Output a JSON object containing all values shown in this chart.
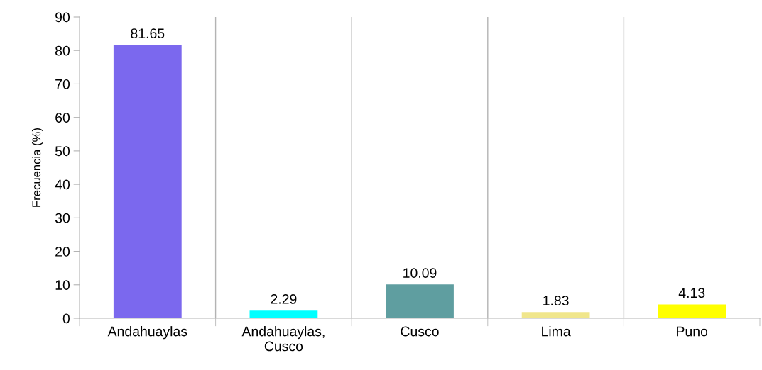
{
  "chart_data": {
    "type": "bar",
    "ylabel": "Frecuencia (%)",
    "categories": [
      "Andahuaylas",
      "Andahuaylas,\nCusco",
      "Cusco",
      "Lima",
      "Puno"
    ],
    "values": [
      81.65,
      2.29,
      10.09,
      1.83,
      4.13
    ],
    "colors": [
      "#7b68ee",
      "#00ffff",
      "#5f9ea0",
      "#f0e68c",
      "#ffff00"
    ],
    "ylim": [
      0,
      90
    ],
    "yticks": [
      0,
      10,
      20,
      30,
      40,
      50,
      60,
      70,
      80,
      90
    ],
    "grid": "x",
    "data_labels": true,
    "legend": false
  }
}
